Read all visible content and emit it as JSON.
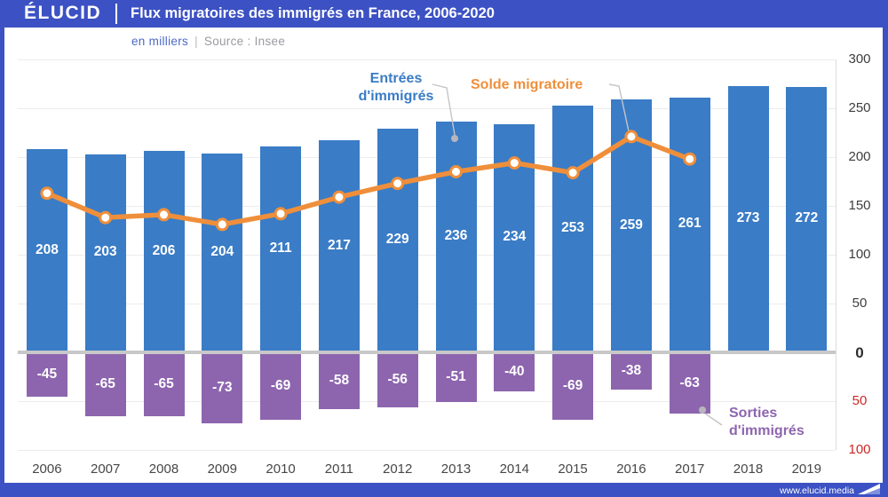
{
  "header": {
    "logo": "ÉLUCID",
    "title": "Flux migratoires des immigrés en France, 2006-2020"
  },
  "subtitle": {
    "unit": "en milliers",
    "separator": "|",
    "source": "Source : Insee"
  },
  "footer": {
    "url": "www.elucid.media"
  },
  "colors": {
    "brand_indigo": "#3c51c3",
    "bar_blue": "#3a7cc6",
    "bar_purple": "#8d65ae",
    "line_orange": "#ef8f3b",
    "tick_red": "#cc2824",
    "tick_dark": "#3d3d3d",
    "zero_line": "#c8c8c8",
    "grid": "#ececec",
    "leader_gray": "#c4c4ca"
  },
  "chart_data": {
    "type": "bar",
    "title": "Flux migratoires des immigrés en France, 2006-2020",
    "unit": "en milliers",
    "source": "Source : Insee",
    "categories": [
      "2006",
      "2007",
      "2008",
      "2009",
      "2010",
      "2011",
      "2012",
      "2013",
      "2014",
      "2015",
      "2016",
      "2017",
      "2018",
      "2019"
    ],
    "series": [
      {
        "name": "Entrées d'immigrés",
        "type": "bar",
        "color": "#3a7cc6",
        "values": [
          208,
          203,
          206,
          204,
          211,
          217,
          229,
          236,
          234,
          253,
          259,
          261,
          273,
          272
        ]
      },
      {
        "name": "Sorties d'immigrés",
        "type": "bar",
        "color": "#8d65ae",
        "values": [
          -45,
          -65,
          -65,
          -73,
          -69,
          -58,
          -56,
          -51,
          -40,
          -69,
          -38,
          -63,
          null,
          null
        ]
      },
      {
        "name": "Solde migratoire",
        "type": "line",
        "color": "#ef8f3b",
        "values": [
          163,
          138,
          141,
          131,
          142,
          159,
          173,
          185,
          194,
          184,
          221,
          198,
          null,
          null
        ]
      }
    ],
    "ylim": [
      -100,
      300
    ],
    "grid": true,
    "legend_position": "annotations-inside-plot",
    "yticks": [
      {
        "label": "300",
        "value": 300,
        "style": "pos"
      },
      {
        "label": "250",
        "value": 250,
        "style": "pos"
      },
      {
        "label": "200",
        "value": 200,
        "style": "pos"
      },
      {
        "label": "150",
        "value": 150,
        "style": "pos"
      },
      {
        "label": "100",
        "value": 100,
        "style": "pos"
      },
      {
        "label": "50",
        "value": 50,
        "style": "pos"
      },
      {
        "label": "0",
        "value": 0,
        "style": "zero"
      },
      {
        "label": "50",
        "value": -50,
        "style": "neg"
      },
      {
        "label": "100",
        "value": -100,
        "style": "neg"
      }
    ],
    "annotations": {
      "entries_line1": "Entrées",
      "entries_line2": "d'immigrés",
      "solde": "Solde migratoire",
      "sorties_line1": "Sorties",
      "sorties_line2": "d'immigrés"
    }
  }
}
